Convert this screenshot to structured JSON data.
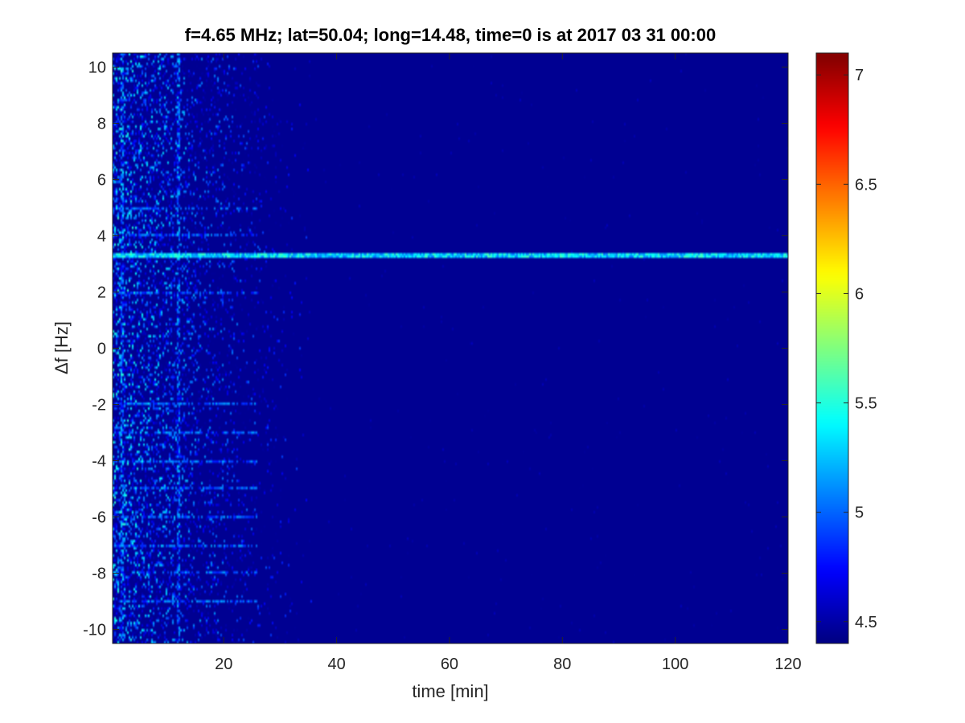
{
  "chart_data": {
    "type": "heatmap",
    "title": "f=4.65 MHz;  lat=50.04; long=14.48, time=0 is at 2017 03 31 00:00",
    "xlabel": "time [min]",
    "ylabel": "Δf [Hz]",
    "xlim": [
      0.3,
      120
    ],
    "ylim": [
      -10.5,
      10.5
    ],
    "xticks": [
      20,
      40,
      60,
      80,
      100,
      120
    ],
    "xtick_labels": [
      "20",
      "40",
      "60",
      "80",
      "100",
      "120"
    ],
    "yticks": [
      10,
      8,
      6,
      4,
      2,
      0,
      -2,
      -4,
      -6,
      -8,
      -10
    ],
    "ytick_labels": [
      "10",
      "8",
      "6",
      "4",
      "2",
      "0",
      "-2",
      "-4",
      "-6",
      "-8",
      "-10"
    ],
    "colorbar": {
      "colormap": "jet",
      "clim": [
        4.4,
        7.1
      ],
      "ticks": [
        7,
        6.5,
        6,
        5.5,
        5,
        4.5
      ],
      "tick_labels": [
        "7",
        "6.5",
        "6",
        "5.5",
        "5",
        "4.5"
      ]
    },
    "background_value": 4.45,
    "features": {
      "carrier_line": {
        "df": 3.3,
        "t_start": 0.3,
        "t_end": 120,
        "value": 5.6
      },
      "harmonic_lines": {
        "df": [
          5,
          4,
          2,
          -2,
          -3,
          -4,
          -5,
          -6,
          -7,
          -8,
          -9
        ],
        "t_end": 26,
        "value": 5.2
      },
      "vertical_bands": {
        "t": [
          2,
          12
        ],
        "value": 5.3
      },
      "noise_region": {
        "t_start": 0.3,
        "t_fade": 38,
        "peak_value": 5.6
      }
    },
    "grid": false,
    "legend": "none"
  }
}
